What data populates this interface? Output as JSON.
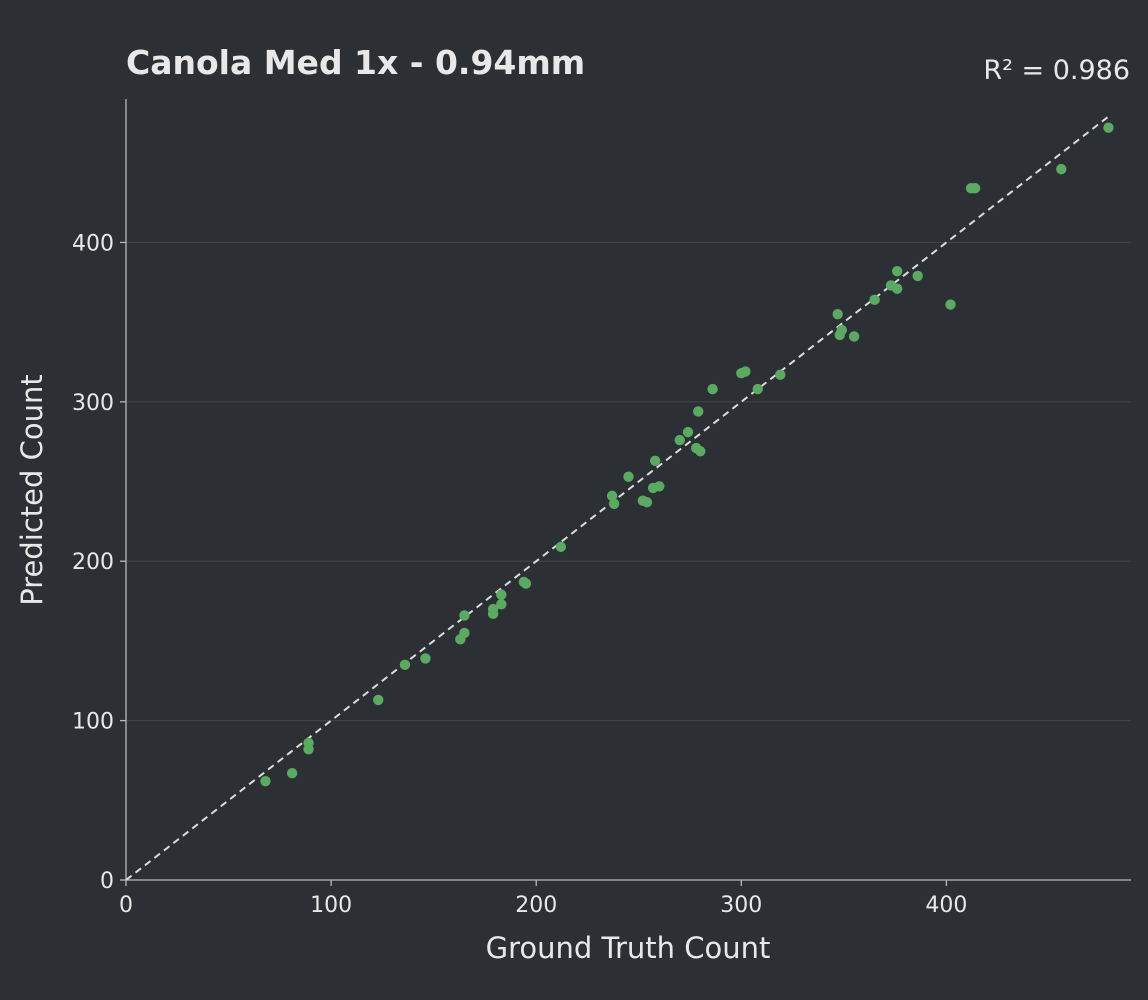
{
  "colors": {
    "background": "#2c3034",
    "text": "#e8e8e8",
    "axis": "#b8b8b8",
    "grid": "#3e4348",
    "point": "#5aaa62",
    "identity_line": "#dcdcdc"
  },
  "chart_data": {
    "type": "scatter",
    "title": "Canola Med 1x - 0.94mm",
    "annotation": "R² = 0.986",
    "xlabel": "Ground Truth Count",
    "ylabel": "Predicted Count",
    "xlim": [
      0,
      490
    ],
    "ylim": [
      0,
      490
    ],
    "xticks": [
      0,
      100,
      200,
      300,
      400
    ],
    "yticks": [
      0,
      100,
      200,
      300,
      400
    ],
    "grid": "horizontal",
    "reference_line": {
      "style": "dashed",
      "from": [
        0,
        0
      ],
      "to": [
        480,
        480
      ]
    },
    "points": [
      [
        68,
        62
      ],
      [
        81,
        67
      ],
      [
        89,
        82
      ],
      [
        89,
        86
      ],
      [
        123,
        113
      ],
      [
        136,
        135
      ],
      [
        146,
        139
      ],
      [
        163,
        151
      ],
      [
        165,
        155
      ],
      [
        165,
        166
      ],
      [
        179,
        167
      ],
      [
        179,
        170
      ],
      [
        183,
        173
      ],
      [
        183,
        179
      ],
      [
        194,
        187
      ],
      [
        195,
        186
      ],
      [
        212,
        209
      ],
      [
        237,
        241
      ],
      [
        238,
        236
      ],
      [
        245,
        253
      ],
      [
        252,
        238
      ],
      [
        254,
        237
      ],
      [
        257,
        246
      ],
      [
        258,
        263
      ],
      [
        260,
        247
      ],
      [
        270,
        276
      ],
      [
        274,
        281
      ],
      [
        278,
        271
      ],
      [
        279,
        294
      ],
      [
        280,
        269
      ],
      [
        286,
        308
      ],
      [
        300,
        318
      ],
      [
        302,
        319
      ],
      [
        308,
        308
      ],
      [
        319,
        317
      ],
      [
        347,
        355
      ],
      [
        348,
        342
      ],
      [
        349,
        345
      ],
      [
        355,
        341
      ],
      [
        365,
        364
      ],
      [
        373,
        373
      ],
      [
        376,
        382
      ],
      [
        376,
        371
      ],
      [
        386,
        379
      ],
      [
        402,
        361
      ],
      [
        412,
        434
      ],
      [
        414,
        434
      ],
      [
        456,
        446
      ],
      [
        479,
        472
      ]
    ]
  }
}
